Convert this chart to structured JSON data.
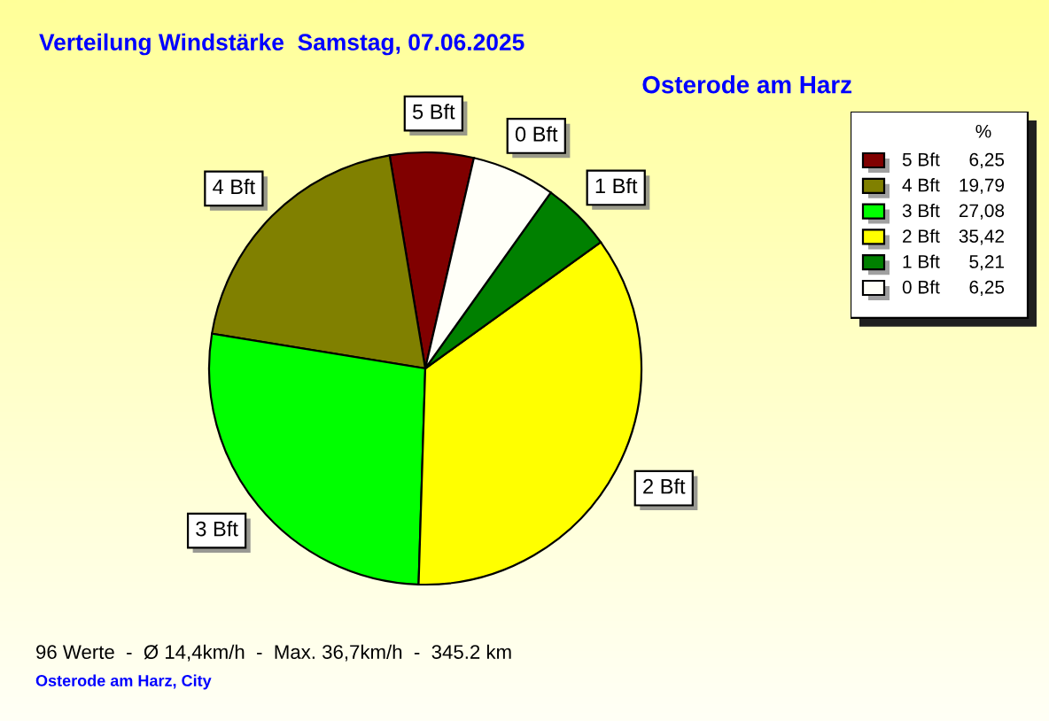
{
  "chart_data": {
    "type": "pie",
    "title": "Verteilung Windstärke  Samstag, 07.06.2025",
    "subtitle": "Osterode am Harz",
    "categories": [
      "5 Bft",
      "4 Bft",
      "3 Bft",
      "2 Bft",
      "1 Bft",
      "0 Bft"
    ],
    "values": [
      6.25,
      19.79,
      27.08,
      35.42,
      5.21,
      6.25
    ],
    "colors": [
      "#800000",
      "#808000",
      "#00ff00",
      "#ffff00",
      "#008000",
      "#fffff8"
    ],
    "value_labels": [
      "6,25",
      "19,79",
      "27,08",
      "35,42",
      "5,21",
      "6,25"
    ],
    "legend": "right",
    "legend_title": "%",
    "annotations": [
      "96 Werte  -  Ø 14,4km/h  -  Max. 36,7km/h  -  345.2 km",
      "Osterode am Harz, City"
    ]
  }
}
